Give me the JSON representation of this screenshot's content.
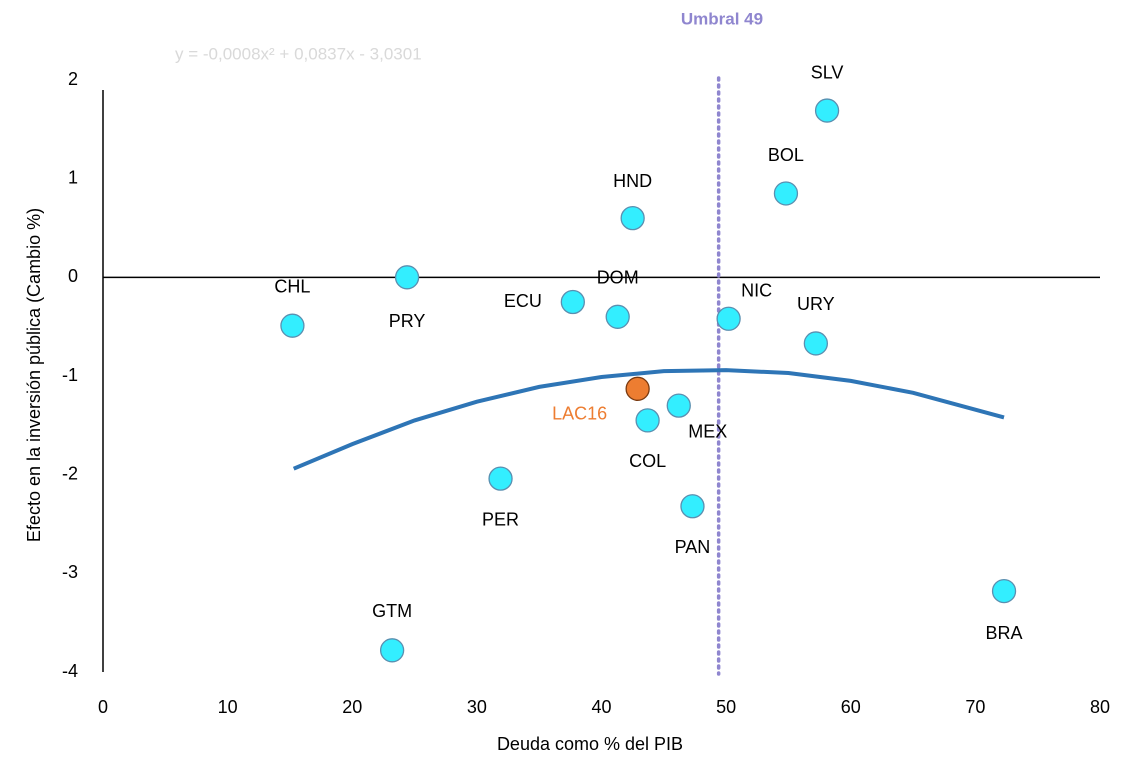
{
  "chart_data": {
    "type": "scatter",
    "xlabel": "Deuda como % del PIB",
    "ylabel": "Efecto en la inversión pública (Cambio %)",
    "xlim": [
      0,
      80
    ],
    "xticks": [
      0,
      10,
      20,
      30,
      40,
      50,
      60,
      70,
      80
    ],
    "ylim": [
      -4,
      2
    ],
    "yticks": [
      -4,
      -3,
      -2,
      -1,
      0,
      1,
      2
    ],
    "labels": [
      "CHL",
      "PRY",
      "ECU",
      "DOM",
      "HND",
      "NIC",
      "BOL",
      "SLV",
      "URY",
      "LAC16",
      "MEX",
      "COL",
      "PER",
      "PAN",
      "GTM",
      "BRA"
    ],
    "x": [
      15.2,
      24.4,
      37.7,
      41.3,
      42.5,
      50.2,
      54.8,
      58.1,
      57.2,
      42.9,
      46.2,
      43.7,
      31.9,
      47.3,
      23.2,
      72.3
    ],
    "values": [
      -0.49,
      0.0,
      -0.25,
      -0.4,
      0.6,
      -0.42,
      0.85,
      1.69,
      -0.67,
      -1.13,
      -1.3,
      -1.45,
      -2.04,
      -2.32,
      -3.78,
      -3.18
    ],
    "colors": [
      "#33eeff",
      "#33eeff",
      "#33eeff",
      "#33eeff",
      "#33eeff",
      "#33eeff",
      "#33eeff",
      "#33eeff",
      "#33eeff",
      "#ed7d31",
      "#33eeff",
      "#33eeff",
      "#33eeff",
      "#33eeff",
      "#33eeff",
      "#33eeff"
    ],
    "label_colors": [
      "#000000",
      "#000000",
      "#000000",
      "#000000",
      "#000000",
      "#000000",
      "#000000",
      "#000000",
      "#000000",
      "#ed7d31",
      "#000000",
      "#000000",
      "#000000",
      "#000000",
      "#000000",
      "#000000"
    ],
    "trend": {
      "label": "y = -0,0008x² + 0,0837x - 3,0301",
      "color": "#2e75b6",
      "x": [
        15.3,
        20,
        25,
        30,
        35,
        40,
        45,
        50,
        55,
        60,
        65,
        72.3
      ],
      "values": [
        -1.94,
        -1.69,
        -1.45,
        -1.26,
        -1.11,
        -1.01,
        -0.95,
        -0.94,
        -0.97,
        -1.05,
        -1.17,
        -1.42
      ]
    },
    "threshold": {
      "label": "Umbral 49",
      "value": 49.4,
      "color": "#8f86cf"
    }
  }
}
